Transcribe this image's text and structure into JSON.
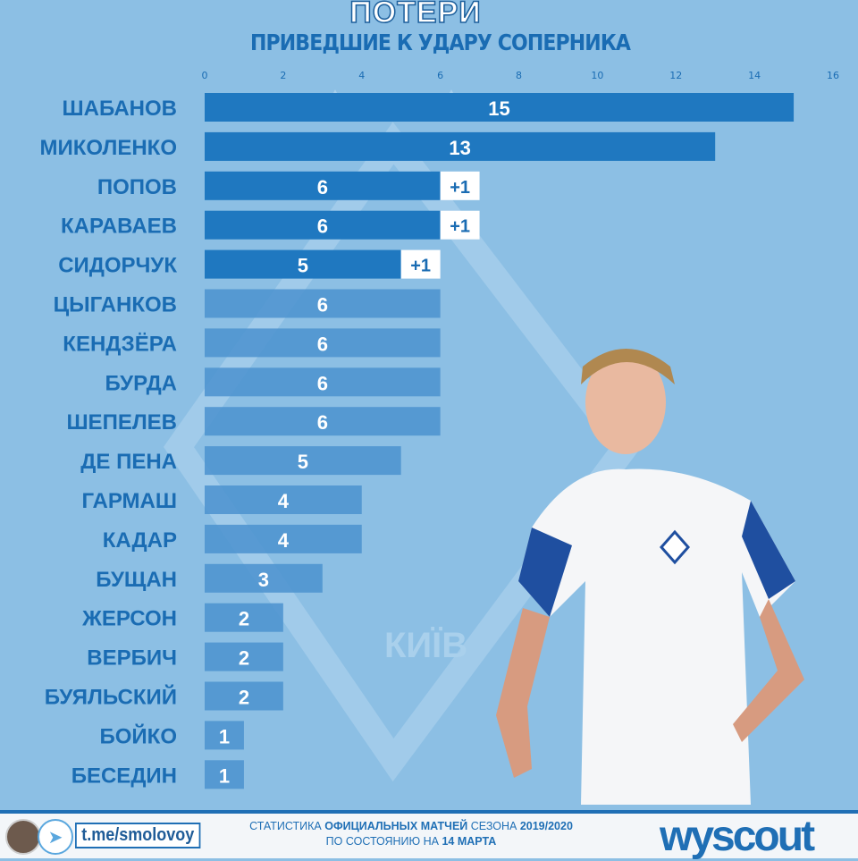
{
  "header": {
    "title": "ПОТЕРИ",
    "subtitle": "ПРИВЕДШИЕ К УДАРУ СОПЕРНИКА"
  },
  "watermark": {
    "text": "КИЇВ"
  },
  "chart_data": {
    "type": "bar",
    "orientation": "horizontal",
    "title": "ПОТЕРИ",
    "subtitle": "ПРИВЕДШИЕ К УДАРУ СОПЕРНИКА",
    "xlim": [
      0,
      16
    ],
    "ticks": [
      0,
      2,
      4,
      6,
      8,
      10,
      12,
      14,
      16
    ],
    "categories": [
      "ШАБАНОВ",
      "МИКОЛЕНКО",
      "ПОПОВ",
      "КАРАВАЕВ",
      "СИДОРЧУК",
      "ЦЫГАНКОВ",
      "КЕНДЗЁРА",
      "БУРДА",
      "ШЕПЕЛЕВ",
      "ДЕ ПЕНА",
      "ГАРМАШ",
      "КАДАР",
      "БУЩАН",
      "ЖЕРСОН",
      "ВЕРБИЧ",
      "БУЯЛЬСКИЙ",
      "БОЙКО",
      "БЕСЕДИН"
    ],
    "series": [
      {
        "name": "base",
        "values": [
          15,
          13,
          6,
          6,
          5,
          6,
          6,
          6,
          6,
          5,
          4,
          4,
          3,
          2,
          2,
          2,
          1,
          1
        ]
      },
      {
        "name": "extra",
        "values": [
          0,
          0,
          1,
          1,
          1,
          0,
          0,
          0,
          0,
          0,
          0,
          0,
          0,
          0,
          0,
          0,
          0,
          0
        ]
      }
    ],
    "extra_labels": [
      "",
      "",
      "+1",
      "+1",
      "+1",
      "",
      "",
      "",
      "",
      "",
      "",
      "",
      "",
      "",
      "",
      "",
      "",
      ""
    ],
    "colors": {
      "bar_dark": "#1f78c0",
      "bar_light": "#4b92cf",
      "extra": "#ffffff",
      "text": "#1a6cb3"
    }
  },
  "footer": {
    "link": "t.me/smolovoy",
    "line1_a": "СТАТИСТИКА ",
    "line1_b": "ОФИЦИАЛЬНЫХ МАТЧЕЙ",
    "line1_c": " СЕЗОНА ",
    "line1_d": "2019/2020",
    "line2_a": "ПО СОСТОЯНИЮ НА ",
    "line2_b": "14 МАРТА",
    "brand": "wyscout"
  }
}
